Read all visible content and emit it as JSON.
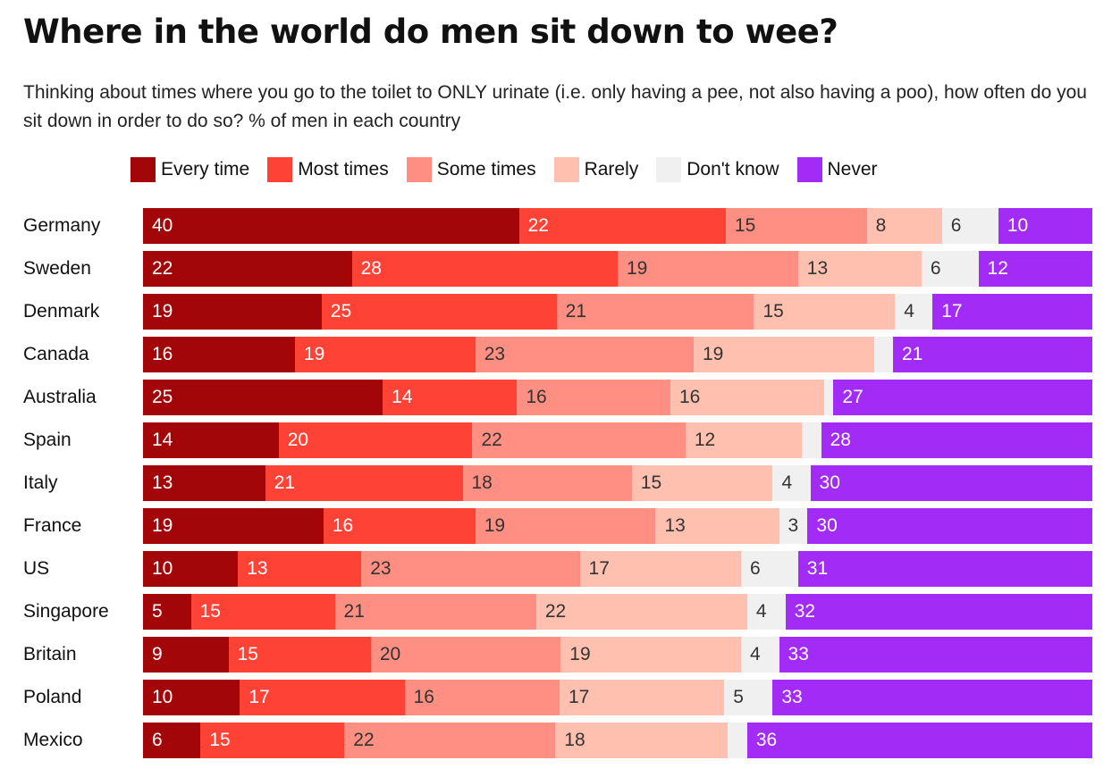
{
  "title": "Where in the world do men sit down to wee?",
  "subtitle": "Thinking about times where you go to the toilet to ONLY urinate (i.e. only having a pee, not also having a poo), how often do you sit down in order to do so? % of men in each country",
  "chart_data": {
    "type": "bar",
    "orientation": "horizontal",
    "stacked": true,
    "legend_position": "top",
    "grid": false,
    "categories": [
      "Germany",
      "Sweden",
      "Denmark",
      "Canada",
      "Australia",
      "Spain",
      "Italy",
      "France",
      "US",
      "Singapore",
      "Britain",
      "Poland",
      "Mexico"
    ],
    "series": [
      {
        "name": "Every time",
        "color": "#a30608",
        "label_color": "#ffffff",
        "values": [
          40,
          22,
          19,
          16,
          25,
          14,
          13,
          19,
          10,
          5,
          9,
          10,
          6
        ]
      },
      {
        "name": "Most times",
        "color": "#ff4236",
        "label_color": "#ffffff",
        "values": [
          22,
          28,
          25,
          19,
          14,
          20,
          21,
          16,
          13,
          15,
          15,
          17,
          15
        ]
      },
      {
        "name": "Some times",
        "color": "#ff8f82",
        "label_color": "#333333",
        "values": [
          15,
          19,
          21,
          23,
          16,
          22,
          18,
          19,
          23,
          21,
          20,
          16,
          22
        ]
      },
      {
        "name": "Rarely",
        "color": "#ffc0b0",
        "label_color": "#333333",
        "values": [
          8,
          13,
          15,
          19,
          16,
          12,
          15,
          13,
          17,
          22,
          19,
          17,
          18
        ]
      },
      {
        "name": "Don't know",
        "color": "#f0f0f0",
        "label_color": "#333333",
        "values": [
          6,
          6,
          4,
          2,
          1,
          2,
          4,
          3,
          6,
          4,
          4,
          5,
          2
        ]
      },
      {
        "name": "Never",
        "color": "#a22bf5",
        "label_color": "#ffffff",
        "values": [
          10,
          12,
          17,
          21,
          27,
          28,
          30,
          30,
          31,
          32,
          33,
          33,
          36
        ]
      }
    ],
    "hide_labels_below": 3
  }
}
